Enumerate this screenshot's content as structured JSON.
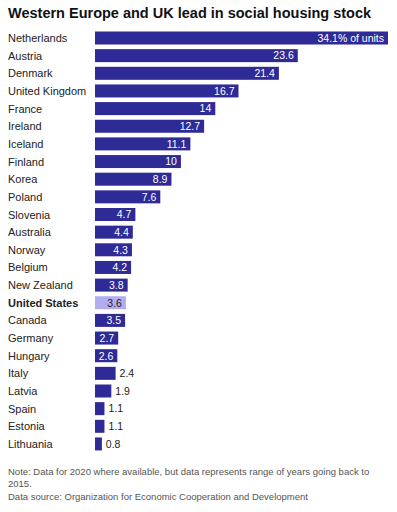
{
  "chart_data": {
    "type": "bar",
    "orientation": "horizontal",
    "title": "Western Europe and UK lead in social housing stock",
    "note": "Note: Data for 2020 where available, but data represents range of years going back to 2015.",
    "source": "Data source: Organization for Economic Cooperation and Development",
    "categories": [
      "Netherlands",
      "Austria",
      "Denmark",
      "United Kingdom",
      "France",
      "Ireland",
      "Iceland",
      "Finland",
      "Korea",
      "Poland",
      "Slovenia",
      "Australia",
      "Norway",
      "Belgium",
      "New Zealand",
      "United States",
      "Canada",
      "Germany",
      "Hungary",
      "Italy",
      "Latvia",
      "Spain",
      "Estonia",
      "Lithuania"
    ],
    "values": [
      34.1,
      23.6,
      21.4,
      16.7,
      14,
      12.7,
      11.1,
      10,
      8.9,
      7.6,
      4.7,
      4.4,
      4.3,
      4.2,
      3.8,
      3.6,
      3.5,
      2.7,
      2.6,
      2.4,
      1.9,
      1.1,
      1.1,
      0.8
    ],
    "value_labels": [
      "34.1% of units",
      "23.6",
      "21.4",
      "16.7",
      "14",
      "12.7",
      "11.1",
      "10",
      "8.9",
      "7.6",
      "4.7",
      "4.4",
      "4.3",
      "4.2",
      "3.8",
      "3.6",
      "3.5",
      "2.7",
      "2.6",
      "2.4",
      "1.9",
      "1.1",
      "1.1",
      "0.8"
    ],
    "colors": [
      "#2e2a96",
      "#2e2a96",
      "#2e2a96",
      "#2e2a96",
      "#2e2a96",
      "#2e2a96",
      "#2e2a96",
      "#2e2a96",
      "#2e2a96",
      "#2e2a96",
      "#2e2a96",
      "#2e2a96",
      "#2e2a96",
      "#2e2a96",
      "#2e2a96",
      "#b3adf0",
      "#2e2a96",
      "#2e2a96",
      "#2e2a96",
      "#2e2a96",
      "#2e2a96",
      "#2e2a96",
      "#2e2a96",
      "#2e2a96"
    ],
    "xlim": [
      0,
      34.1
    ],
    "data_labels": true,
    "tick_labels": false,
    "grid": false
  }
}
